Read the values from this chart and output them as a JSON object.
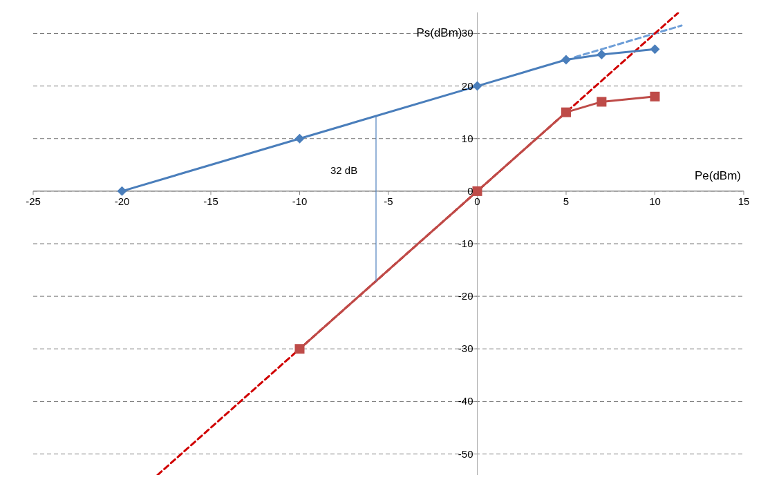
{
  "chart_data": {
    "type": "line",
    "xlabel": "Pe(dBm)",
    "ylabel": "Ps(dBm)",
    "xlim": [
      -25,
      15
    ],
    "xticks": [
      -25,
      -20,
      -15,
      -10,
      -5,
      0,
      5,
      10,
      15
    ],
    "ylim": [
      -54,
      34
    ],
    "yticks": [
      -50,
      -40,
      -30,
      -20,
      -10,
      0,
      10,
      20,
      30
    ],
    "grid": "y",
    "annotations": [
      "32 dB"
    ],
    "series": [
      {
        "color": "#6f9fd8",
        "x": [
          5.5,
          11.5
        ],
        "values": [
          25.5,
          31.5
        ],
        "marker": "none",
        "line_style": "dashed"
      },
      {
        "color": "#d00000",
        "x": [
          -18,
          11.3
        ],
        "values": [
          -54,
          33.9
        ],
        "marker": "none",
        "line_style": "dashed"
      },
      {
        "color": "#4a7ebb",
        "x": [
          -20,
          -10,
          0,
          5,
          7,
          10
        ],
        "values": [
          0,
          10,
          20,
          25,
          26,
          27
        ],
        "marker": "diamond",
        "line_style": "solid"
      },
      {
        "color": "#be4b48",
        "x": [
          -10,
          0,
          5,
          7,
          10
        ],
        "values": [
          -30,
          0,
          15,
          17,
          18
        ],
        "marker": "square",
        "line_style": "solid"
      },
      {
        "color": "#4f81bd",
        "x": [
          -5.7,
          -5.7
        ],
        "values": [
          14.3,
          -17.1
        ],
        "marker": "none",
        "line_style": "solid"
      }
    ]
  }
}
